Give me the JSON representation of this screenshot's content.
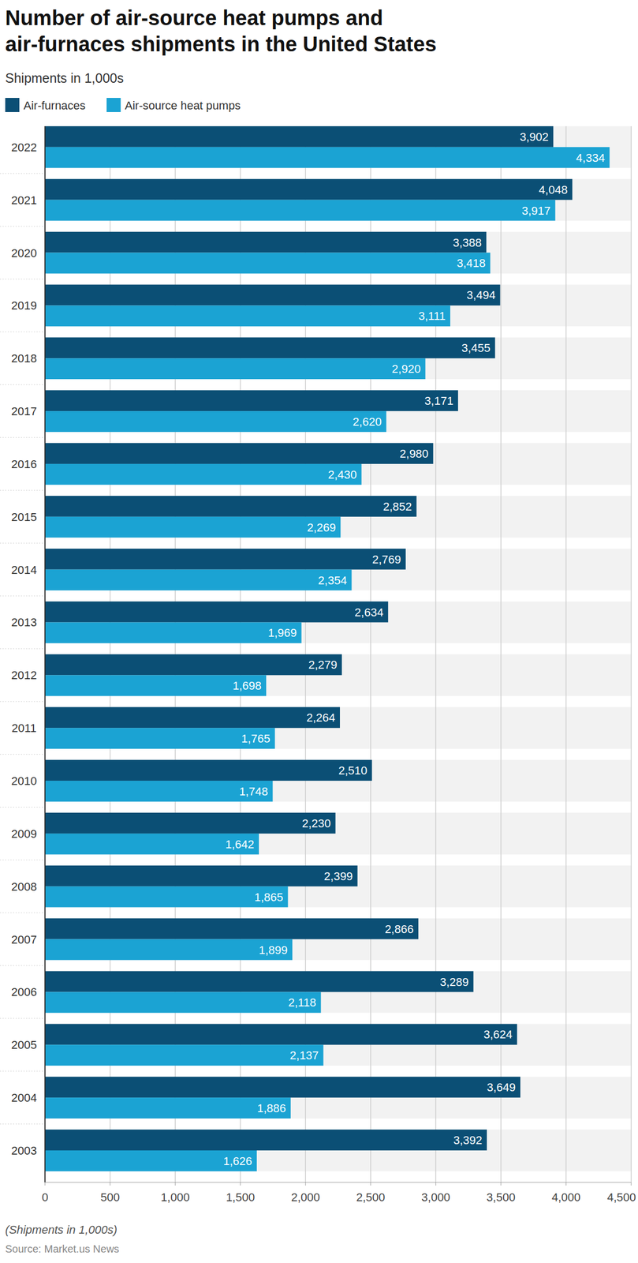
{
  "chart_data": {
    "type": "bar",
    "orientation": "horizontal",
    "title": "Number of air-source heat pumps and air-furnaces shipments in the United States",
    "subtitle": "Shipments in 1,000s",
    "note": "(Shipments in 1,000s)",
    "source": "Source: Market.us News",
    "categories": [
      "2022",
      "2021",
      "2020",
      "2019",
      "2018",
      "2017",
      "2016",
      "2015",
      "2014",
      "2013",
      "2012",
      "2011",
      "2010",
      "2009",
      "2008",
      "2007",
      "2006",
      "2005",
      "2004",
      "2003"
    ],
    "series": [
      {
        "name": "Air-furnaces",
        "color": "#0b4f75",
        "values": [
          3902,
          4048,
          3388,
          3494,
          3455,
          3171,
          2980,
          2852,
          2769,
          2634,
          2279,
          2264,
          2510,
          2230,
          2399,
          2866,
          3289,
          3624,
          3649,
          3392
        ],
        "value_labels": [
          "3,902",
          "4,048",
          "3,388",
          "3,494",
          "3,455",
          "3,171",
          "2,980",
          "2,852",
          "2,769",
          "2,634",
          "2,279",
          "2,264",
          "2,510",
          "2,230",
          "2,399",
          "2,866",
          "3,289",
          "3,624",
          "3,649",
          "3,392"
        ]
      },
      {
        "name": "Air-source heat pumps",
        "color": "#1ba3d3",
        "values": [
          4334,
          3917,
          3418,
          3111,
          2920,
          2620,
          2430,
          2269,
          2354,
          1969,
          1698,
          1765,
          1748,
          1642,
          1865,
          1899,
          2118,
          2137,
          1886,
          1626
        ],
        "value_labels": [
          "4,334",
          "3,917",
          "3,418",
          "3,111",
          "2,920",
          "2,620",
          "2,430",
          "2,269",
          "2,354",
          "1,969",
          "1,698",
          "1,765",
          "1,748",
          "1,642",
          "1,865",
          "1,899",
          "2,118",
          "2,137",
          "1,886",
          "1,626"
        ]
      }
    ],
    "xlim": [
      0,
      4500
    ],
    "xticks": [
      0,
      500,
      {
        "value": 1000,
        "label": "1,000"
      },
      {
        "value": 1500,
        "label": "1,500"
      },
      {
        "value": 2000,
        "label": "2,000"
      },
      {
        "value": 2500,
        "label": "2,500"
      },
      {
        "value": 3000,
        "label": "3,000"
      },
      {
        "value": 3500,
        "label": "3,500"
      },
      {
        "value": 4000,
        "label": "4,000"
      },
      {
        "value": 4500,
        "label": "4,500"
      }
    ],
    "grid": true,
    "legend": "top-left",
    "data_labels": true
  }
}
